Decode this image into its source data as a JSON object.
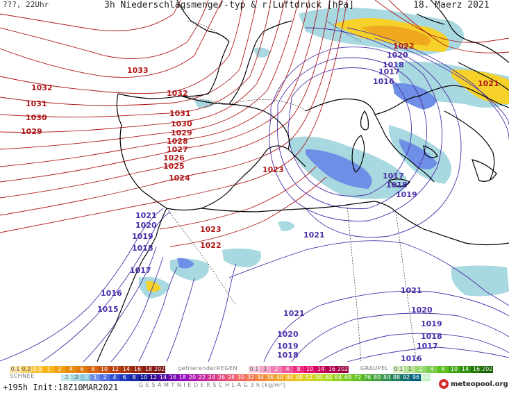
{
  "header": {
    "left": "???, 22Uhr",
    "title": "3h Niederschlagsmenge/-typ & r.Luftdruck [hPa]",
    "date": "18. Maerz 2021"
  },
  "isobar_labels_red": [
    {
      "text": "1033",
      "pos": "nw-atlantic"
    },
    {
      "text": "1032",
      "pos": "west-atlantic"
    },
    {
      "text": "1031",
      "pos": "west-atlantic"
    },
    {
      "text": "1030",
      "pos": "west-atlantic"
    },
    {
      "text": "1029",
      "pos": "west-atlantic"
    },
    {
      "text": "1032",
      "pos": "bay-of-biscay"
    },
    {
      "text": "1031",
      "pos": "iberia-north"
    },
    {
      "text": "1030",
      "pos": "iberia-north"
    },
    {
      "text": "1029",
      "pos": "iberia-north"
    },
    {
      "text": "1028",
      "pos": "iberia-central"
    },
    {
      "text": "1027",
      "pos": "iberia-central"
    },
    {
      "text": "1026",
      "pos": "iberia-central"
    },
    {
      "text": "1025",
      "pos": "iberia-central"
    },
    {
      "text": "1024",
      "pos": "iberia-south"
    },
    {
      "text": "1023",
      "pos": "balearic"
    },
    {
      "text": "1023",
      "pos": "alboran"
    },
    {
      "text": "1022",
      "pos": "morocco-north"
    },
    {
      "text": "1022",
      "pos": "alps"
    },
    {
      "text": "1021",
      "pos": "adriatic"
    }
  ],
  "isobar_labels_blue": [
    {
      "text": "1020",
      "pos": "alps"
    },
    {
      "text": "1018",
      "pos": "alps"
    },
    {
      "text": "1017",
      "pos": "alps"
    },
    {
      "text": "1016",
      "pos": "tyrrhenian"
    },
    {
      "text": "1017",
      "pos": "ionian"
    },
    {
      "text": "1018",
      "pos": "ionian"
    },
    {
      "text": "1019",
      "pos": "ionian"
    },
    {
      "text": "1021",
      "pos": "morocco-coast"
    },
    {
      "text": "1020",
      "pos": "morocco-coast"
    },
    {
      "text": "1019",
      "pos": "morocco-coast"
    },
    {
      "text": "1018",
      "pos": "morocco-coast"
    },
    {
      "text": "1017",
      "pos": "morocco-south"
    },
    {
      "text": "1016",
      "pos": "morocco-south"
    },
    {
      "text": "1015",
      "pos": "morocco-south"
    },
    {
      "text": "1021",
      "pos": "algeria"
    },
    {
      "text": "1021",
      "pos": "sahara"
    },
    {
      "text": "1021",
      "pos": "libya"
    },
    {
      "text": "1020",
      "pos": "libya"
    },
    {
      "text": "1019",
      "pos": "libya"
    },
    {
      "text": "1018",
      "pos": "libya"
    },
    {
      "text": "1017",
      "pos": "libya"
    },
    {
      "text": "1016",
      "pos": "libya"
    },
    {
      "text": "1020",
      "pos": "sahara-south"
    },
    {
      "text": "1019",
      "pos": "sahara-south"
    },
    {
      "text": "1018",
      "pos": "sahara-south"
    }
  ],
  "legend": {
    "snow_caption": "SCHNEE",
    "snow_values": [
      "0.1",
      "0.2",
      "0.5",
      "1",
      "2",
      "4",
      "6",
      "8",
      "10",
      "12",
      "14",
      "16",
      "18",
      "2025+"
    ],
    "frz_caption": "gefrierenderREGEN",
    "frz_values": [
      "0.1",
      "1",
      "2",
      "4",
      "8",
      "10",
      "14",
      "16",
      "2025+"
    ],
    "graupel_caption": "GRAUPEL",
    "graupel_values": [
      "0.1",
      "1",
      "2",
      "4",
      "8",
      "10",
      "14",
      "16",
      "2025+"
    ],
    "rain_values": [
      ".1",
      ".2",
      ".5",
      "1",
      "2",
      "4",
      "6",
      "8",
      "10",
      "12",
      "14",
      "16",
      "18",
      "20",
      "22",
      "24",
      "26",
      "28",
      "30",
      "32",
      "34",
      "36",
      "40",
      "44",
      "48",
      "52",
      "56",
      "60",
      "64",
      "68",
      "72",
      "76",
      "80",
      "84",
      "88",
      "92",
      "96",
      "100"
    ],
    "total_caption": "G E S A M T N I E D E R S C H L A G   3 h   [kg/m²]"
  },
  "footer": {
    "run": "+195h Init:18Z10MAR2021",
    "logo": "meteopool.org"
  },
  "colors": {
    "isobar_high": "#b01818",
    "isobar_low": "#4a2ea8",
    "coast": "#000000",
    "rain_light": "#a8d8e0",
    "rain_blue": "#6f8fe6",
    "snow_yellow": "#f2c31e"
  }
}
